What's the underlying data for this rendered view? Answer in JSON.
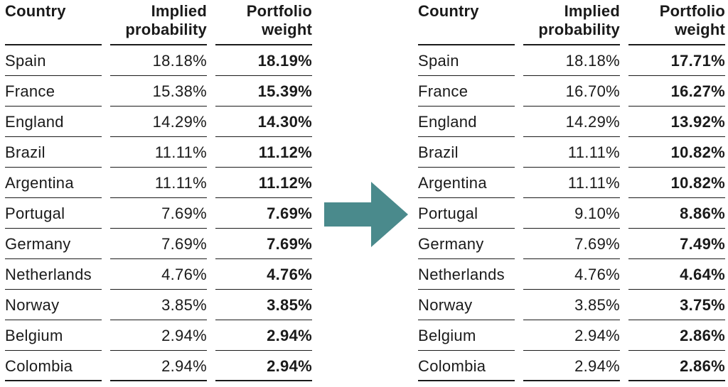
{
  "headers": {
    "country": "Country",
    "prob_line1": "Implied",
    "prob_line2": "probability",
    "weight_line1": "Portfolio",
    "weight_line2": "weight"
  },
  "colors": {
    "arrow": "#4a8a8c",
    "text": "#1a1a1a"
  },
  "icons": {
    "arrow": "right-arrow-icon"
  },
  "left_table": [
    {
      "country": "Spain",
      "prob": "18.18%",
      "weight": "18.19%"
    },
    {
      "country": "France",
      "prob": "15.38%",
      "weight": "15.39%"
    },
    {
      "country": "England",
      "prob": "14.29%",
      "weight": "14.30%"
    },
    {
      "country": "Brazil",
      "prob": "11.11%",
      "weight": "11.12%"
    },
    {
      "country": "Argentina",
      "prob": "11.11%",
      "weight": "11.12%"
    },
    {
      "country": "Portugal",
      "prob": "7.69%",
      "weight": "7.69%"
    },
    {
      "country": "Germany",
      "prob": "7.69%",
      "weight": "7.69%"
    },
    {
      "country": "Netherlands",
      "prob": "4.76%",
      "weight": "4.76%"
    },
    {
      "country": "Norway",
      "prob": "3.85%",
      "weight": "3.85%"
    },
    {
      "country": "Belgium",
      "prob": "2.94%",
      "weight": "2.94%"
    },
    {
      "country": "Colombia",
      "prob": "2.94%",
      "weight": "2.94%"
    }
  ],
  "right_table": [
    {
      "country": "Spain",
      "prob": "18.18%",
      "weight": "17.71%"
    },
    {
      "country": "France",
      "prob": "16.70%",
      "weight": "16.27%"
    },
    {
      "country": "England",
      "prob": "14.29%",
      "weight": "13.92%"
    },
    {
      "country": "Brazil",
      "prob": "11.11%",
      "weight": "10.82%"
    },
    {
      "country": "Argentina",
      "prob": "11.11%",
      "weight": "10.82%"
    },
    {
      "country": "Portugal",
      "prob": "9.10%",
      "weight": "8.86%"
    },
    {
      "country": "Germany",
      "prob": "7.69%",
      "weight": "7.49%"
    },
    {
      "country": "Netherlands",
      "prob": "4.76%",
      "weight": "4.64%"
    },
    {
      "country": "Norway",
      "prob": "3.85%",
      "weight": "3.75%"
    },
    {
      "country": "Belgium",
      "prob": "2.94%",
      "weight": "2.86%"
    },
    {
      "country": "Colombia",
      "prob": "2.94%",
      "weight": "2.86%"
    }
  ]
}
